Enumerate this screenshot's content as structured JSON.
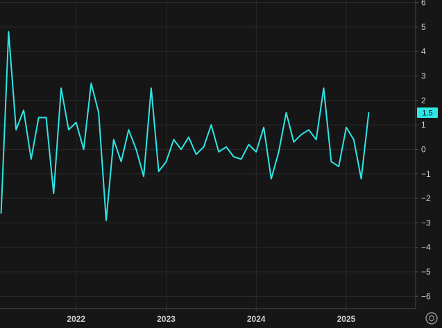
{
  "chart_data": {
    "type": "line",
    "title": "",
    "xlabel": "",
    "ylabel": "",
    "ylim": [
      -6.5,
      6.1
    ],
    "y_ticks": [
      6,
      5,
      4,
      3,
      2,
      1,
      0,
      -1,
      -2,
      -3,
      -4,
      -5,
      -6
    ],
    "y_tick_labels": [
      "6",
      "5",
      "4",
      "3",
      "2",
      "1",
      "0",
      "−1",
      "−2",
      "−3",
      "−4",
      "−5",
      "−6"
    ],
    "x_ticks": [
      "2022",
      "2023",
      "2024",
      "2025"
    ],
    "grid": true,
    "line_color": "#2ee6e6",
    "last_value_label": "1.5",
    "series": [
      {
        "x": [
          "2021-03",
          "2021-04",
          "2021-05",
          "2021-06",
          "2021-07",
          "2021-08",
          "2021-09",
          "2021-10",
          "2021-11",
          "2021-12",
          "2022-01",
          "2022-02",
          "2022-03",
          "2022-04",
          "2022-05",
          "2022-06",
          "2022-07",
          "2022-08",
          "2022-09",
          "2022-10",
          "2022-11",
          "2022-12",
          "2023-01",
          "2023-02",
          "2023-03",
          "2023-04",
          "2023-05",
          "2023-06",
          "2023-07",
          "2023-08",
          "2023-09",
          "2023-10",
          "2023-11",
          "2023-12",
          "2024-01",
          "2024-02",
          "2024-03",
          "2024-04",
          "2024-05",
          "2024-06",
          "2024-07",
          "2024-08",
          "2024-09",
          "2024-10",
          "2024-11",
          "2024-12",
          "2025-01",
          "2025-02",
          "2025-03",
          "2025-04",
          "2025-05",
          "2025-06"
        ],
        "y": [
          -2.6,
          4.8,
          0.8,
          1.6,
          -0.4,
          1.3,
          1.3,
          -1.8,
          2.5,
          0.8,
          1.1,
          0.0,
          2.7,
          1.5,
          -2.9,
          0.4,
          -0.5,
          0.8,
          0.0,
          -1.1,
          2.5,
          -0.9,
          -0.5,
          0.4,
          0.0,
          0.5,
          -0.2,
          0.1,
          1.0,
          -0.1,
          0.1,
          -0.3,
          -0.4,
          0.2,
          -0.1,
          0.9,
          -1.2,
          -0.1,
          1.5,
          0.3,
          0.6,
          0.8,
          0.4,
          2.5,
          -0.5,
          -0.7,
          0.9,
          0.4,
          -1.2,
          1.5,
          null,
          null
        ]
      }
    ]
  },
  "footer": {
    "settings_icon": "settings-icon"
  }
}
